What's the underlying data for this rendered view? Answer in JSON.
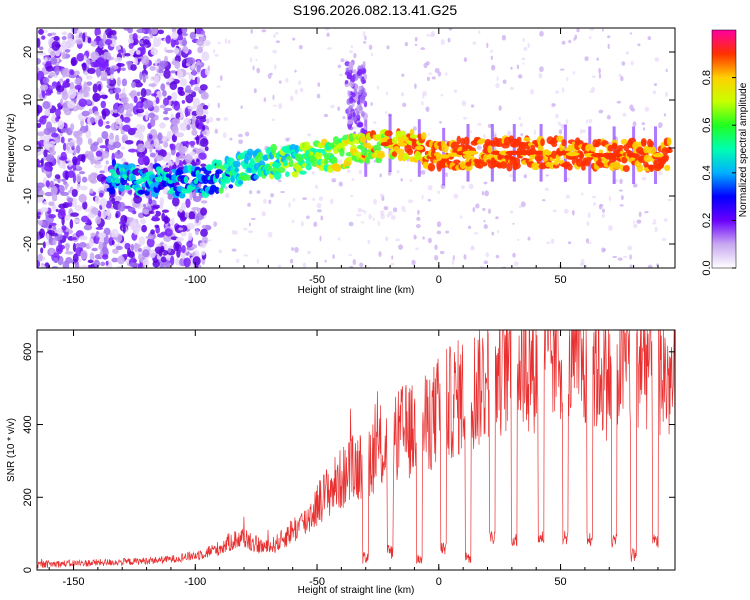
{
  "title": "S196.2026.082.13.41.G25",
  "chart_data": [
    {
      "type": "heatmap",
      "title": "S196.2026.082.13.41.G25",
      "xlabel": "Height of straight line (km)",
      "ylabel": "Frequency (Hz)",
      "xlim": [
        -165,
        97
      ],
      "ylim": [
        -25,
        25
      ],
      "xticks": [
        -150,
        -100,
        -50,
        0,
        50
      ],
      "yticks": [
        -20,
        -10,
        0,
        10,
        20
      ],
      "ridge": {
        "x": [
          -130,
          -120,
          -110,
          -100,
          -90,
          -80,
          -70,
          -60,
          -50,
          -40,
          -30,
          -20,
          -10,
          0,
          10,
          20,
          30,
          40,
          50,
          60,
          70,
          80,
          90
        ],
        "y": [
          -6,
          -6.5,
          -7,
          -7,
          -6,
          -4,
          -3,
          -2.5,
          -2,
          -1,
          0,
          1,
          0.5,
          -2,
          -1,
          -1,
          -1,
          -1,
          -1,
          -1.5,
          -1.5,
          -1.5,
          -1.5
        ]
      },
      "colorbar": {
        "label": "Normalized spectral amplitude",
        "range": [
          0,
          1
        ],
        "ticks": [
          "0.0",
          "0.2",
          "0.4",
          "0.6",
          "0.8"
        ]
      }
    },
    {
      "type": "line",
      "xlabel": "Height of straight line (km)",
      "ylabel": "SNR (10 * v/v)",
      "xlim": [
        -165,
        97
      ],
      "ylim": [
        0,
        660
      ],
      "xticks": [
        -150,
        -100,
        -50,
        0,
        50
      ],
      "yticks": [
        0,
        200,
        400,
        600
      ],
      "color": "#e83030",
      "series": [
        {
          "name": "SNR",
          "x": [
            -165,
            -150,
            -140,
            -130,
            -120,
            -110,
            -105,
            -100,
            -95,
            -90,
            -85,
            -80,
            -75,
            -70,
            -65,
            -60,
            -55,
            -50,
            -45,
            -40,
            -35,
            -30,
            -25,
            -20,
            -15,
            -10,
            -5,
            0,
            5,
            10,
            15,
            20,
            25,
            30,
            35,
            40,
            45,
            50,
            55,
            60,
            65,
            70,
            75,
            80,
            85,
            90,
            97
          ],
          "y": [
            15,
            18,
            20,
            22,
            25,
            30,
            35,
            40,
            50,
            60,
            80,
            90,
            70,
            60,
            80,
            110,
            130,
            180,
            220,
            250,
            280,
            300,
            330,
            340,
            380,
            380,
            400,
            440,
            460,
            480,
            500,
            530,
            560,
            580,
            580,
            570,
            590,
            600,
            600,
            580,
            560,
            540,
            570,
            600,
            590,
            560,
            500
          ]
        }
      ],
      "dips": [
        {
          "x": -30,
          "y": 10
        },
        {
          "x": -20,
          "y": 30
        },
        {
          "x": -8,
          "y": 15
        },
        {
          "x": 2,
          "y": 40
        },
        {
          "x": 12,
          "y": 20
        },
        {
          "x": 22,
          "y": 70
        },
        {
          "x": 31,
          "y": 60
        },
        {
          "x": 42,
          "y": 70
        },
        {
          "x": 52,
          "y": 70
        },
        {
          "x": 62,
          "y": 65
        },
        {
          "x": 72,
          "y": 60
        },
        {
          "x": 80,
          "y": 20
        },
        {
          "x": 89,
          "y": 60
        }
      ]
    }
  ]
}
